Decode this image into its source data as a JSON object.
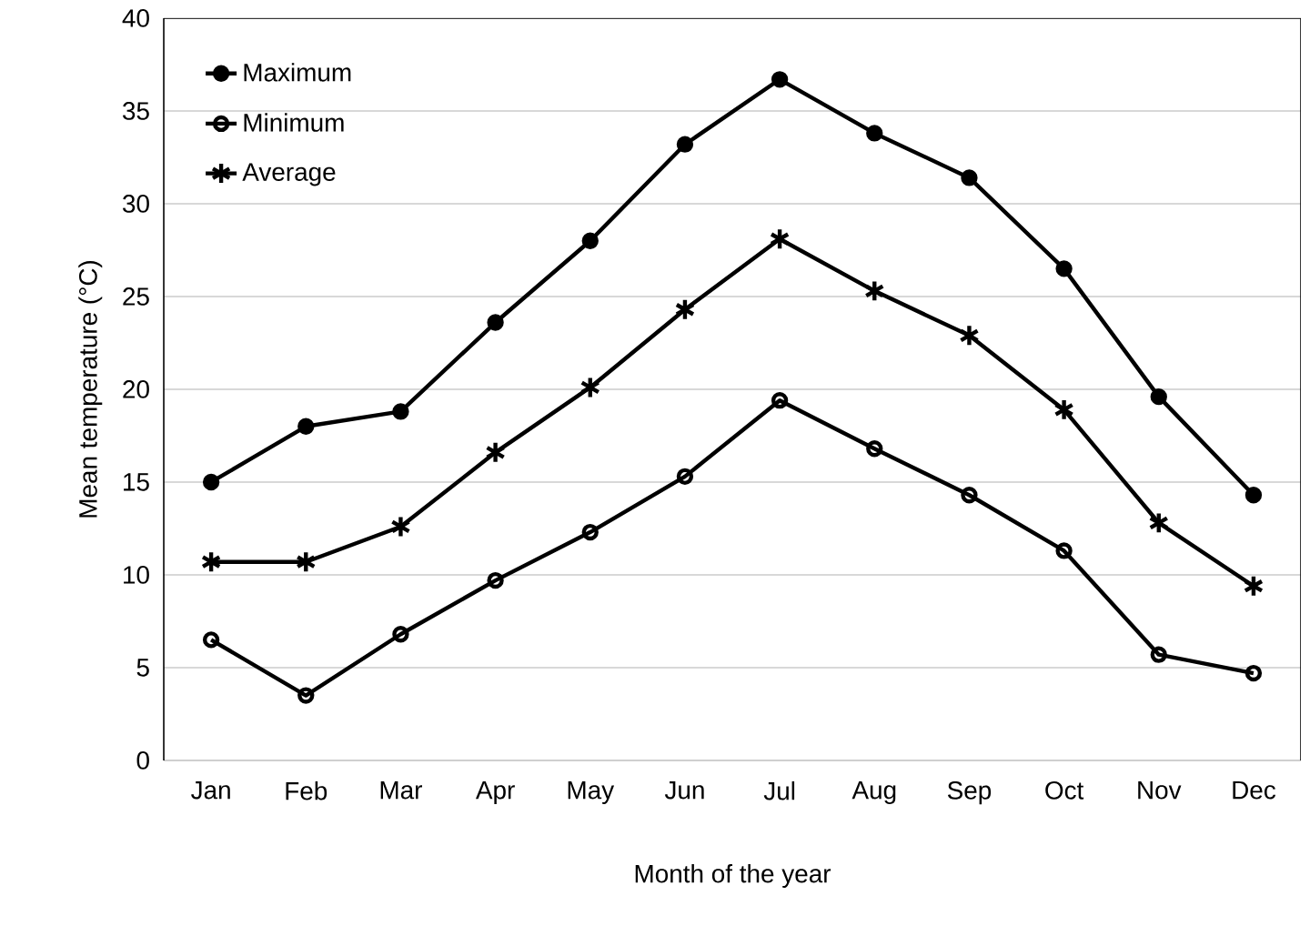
{
  "chart_data": {
    "type": "line",
    "xlabel": "Month of the year",
    "ylabel": "Mean temperature (°C)",
    "categories": [
      "Jan",
      "Feb",
      "Mar",
      "Apr",
      "May",
      "Jun",
      "Jul",
      "Aug",
      "Sep",
      "Oct",
      "Nov",
      "Dec"
    ],
    "series": [
      {
        "name": "Maximum",
        "color": "#000000",
        "marker": "circle",
        "values": [
          15.0,
          18.0,
          18.8,
          23.6,
          28.0,
          33.2,
          36.7,
          33.8,
          31.4,
          26.5,
          19.6,
          14.3
        ]
      },
      {
        "name": "Minimum",
        "color": "#000000",
        "marker": "circle-open",
        "values": [
          6.5,
          3.5,
          6.8,
          9.7,
          12.3,
          15.3,
          19.4,
          16.8,
          14.3,
          11.3,
          5.7,
          4.7
        ]
      },
      {
        "name": "Average",
        "color": "#000000",
        "marker": "cross",
        "values": [
          10.7,
          10.7,
          12.6,
          16.6,
          20.1,
          24.3,
          28.1,
          25.3,
          22.9,
          18.9,
          12.8,
          9.4
        ]
      }
    ],
    "ylim": [
      0,
      40
    ],
    "yticks": [
      0,
      5,
      10,
      15,
      20,
      25,
      30,
      35,
      40
    ],
    "grid": "y",
    "legend": "top left",
    "line_style": "solid"
  }
}
